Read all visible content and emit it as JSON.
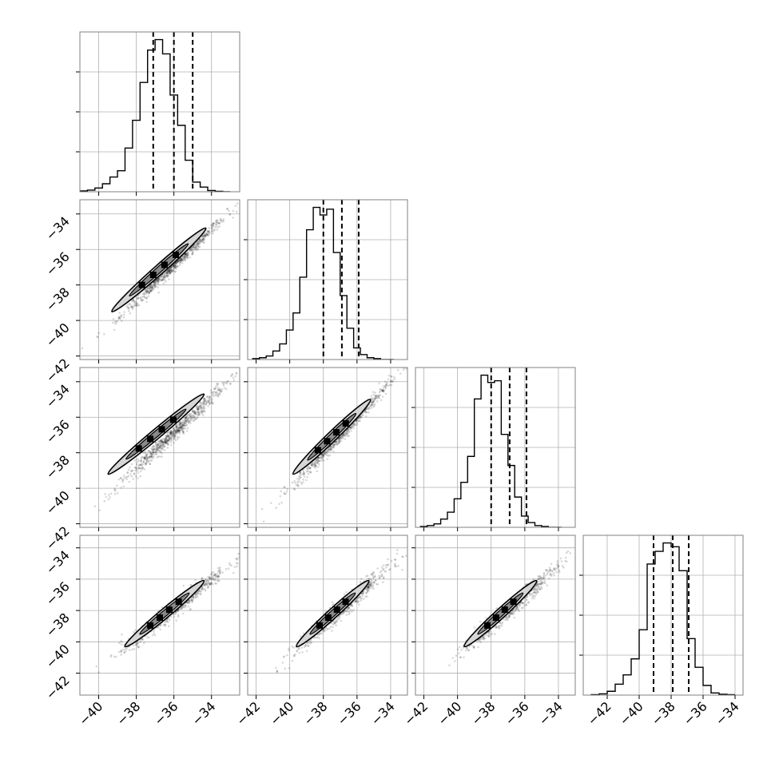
{
  "chart_data": {
    "type": "corner",
    "title": "",
    "grid": true,
    "quantile_lines": [
      0.16,
      0.5,
      0.84
    ],
    "panels": [
      {
        "kind": "hist",
        "row": 0,
        "col": 0,
        "xlim": [
          -41,
          -32.5
        ],
        "quantiles": [
          -37.1,
          -36.0,
          -35.0
        ],
        "bins": [
          -41.0,
          -40.6,
          -40.2,
          -39.8,
          -39.4,
          -39.0,
          -38.6,
          -38.2,
          -37.8,
          -37.4,
          -37.0,
          -36.6,
          -36.2,
          -35.8,
          -35.4,
          -35.0,
          -34.6,
          -34.2,
          -33.8,
          -33.4,
          -33.0
        ],
        "counts": [
          2,
          4,
          9,
          19,
          35,
          50,
          104,
          170,
          260,
          337,
          362,
          328,
          230,
          158,
          75,
          23,
          11,
          3,
          1,
          0
        ]
      },
      {
        "kind": "hist",
        "row": 1,
        "col": 1,
        "xlim": [
          -42.5,
          -33
        ],
        "quantiles": [
          -38.0,
          -36.9,
          -35.9
        ],
        "bins": [
          -42.2,
          -41.8,
          -41.4,
          -41.0,
          -40.6,
          -40.2,
          -39.8,
          -39.4,
          -39.0,
          -38.6,
          -38.2,
          -37.8,
          -37.4,
          -37.0,
          -36.6,
          -36.2,
          -35.8,
          -35.4,
          -35.0,
          -34.6,
          -34.2,
          -33.8
        ],
        "counts": [
          2,
          4,
          8,
          19,
          35,
          66,
          104,
          184,
          290,
          340,
          323,
          336,
          239,
          143,
          70,
          26,
          11,
          4,
          2,
          0,
          0
        ]
      },
      {
        "kind": "hist",
        "row": 2,
        "col": 2,
        "xlim": [
          -42.5,
          -33
        ],
        "quantiles": [
          -38.0,
          -36.9,
          -35.9
        ],
        "bins": [
          -42.2,
          -41.8,
          -41.4,
          -41.0,
          -40.6,
          -40.2,
          -39.8,
          -39.4,
          -39.0,
          -38.6,
          -38.2,
          -37.8,
          -37.4,
          -37.0,
          -36.6,
          -36.2,
          -35.8,
          -35.4,
          -35.0,
          -34.6,
          -34.2,
          -33.8
        ],
        "counts": [
          2,
          4,
          8,
          19,
          35,
          66,
          104,
          164,
          297,
          352,
          335,
          339,
          215,
          143,
          70,
          26,
          11,
          4,
          2,
          0,
          0
        ]
      },
      {
        "kind": "hist",
        "row": 3,
        "col": 3,
        "xlim": [
          -43.5,
          -33.5
        ],
        "quantiles": [
          -39.1,
          -37.9,
          -36.9
        ],
        "bins": [
          -43.0,
          -42.5,
          -42.0,
          -41.5,
          -41.0,
          -40.5,
          -40.0,
          -39.5,
          -39.0,
          -38.5,
          -38.0,
          -37.5,
          -37.0,
          -36.5,
          -36.0,
          -35.5,
          -35.0,
          -34.5,
          -34.0
        ],
        "counts": [
          1,
          3,
          9,
          26,
          48,
          86,
          155,
          311,
          341,
          361,
          352,
          295,
          134,
          66,
          23,
          5,
          2,
          1
        ]
      },
      {
        "kind": "scatter2d",
        "row": 1,
        "col": 0,
        "xlim": [
          -41,
          -32.5
        ],
        "ylim": [
          -42.2,
          -33.2
        ],
        "center": [
          -36.0,
          -36.9
        ],
        "slope": 1.0,
        "spread": [
          1.4,
          0.18
        ],
        "contour": [
          [
            -39.3,
            -39.5
          ],
          [
            -34.3,
            -34.8
          ]
        ]
      },
      {
        "kind": "scatter2d",
        "row": 2,
        "col": 0,
        "xlim": [
          -41,
          -32.5
        ],
        "ylim": [
          -42.2,
          -33.2
        ],
        "center": [
          -36.0,
          -36.9
        ],
        "slope": 1.0,
        "spread": [
          1.4,
          0.22
        ],
        "contour": [
          [
            -39.5,
            -39.2
          ],
          [
            -34.4,
            -34.7
          ]
        ]
      },
      {
        "kind": "scatter2d",
        "row": 2,
        "col": 1,
        "xlim": [
          -42.5,
          -33
        ],
        "ylim": [
          -42.2,
          -33.2
        ],
        "center": [
          -36.9,
          -36.9
        ],
        "slope": 1.0,
        "spread": [
          1.4,
          0.22
        ],
        "contour": [
          [
            -39.8,
            -39.2
          ],
          [
            -35.2,
            -35.0
          ]
        ]
      },
      {
        "kind": "scatter2d",
        "row": 3,
        "col": 0,
        "xlim": [
          -41,
          -32.5
        ],
        "ylim": [
          -43.4,
          -33.2
        ],
        "center": [
          -36.0,
          -37.9
        ],
        "slope": 0.95,
        "spread": [
          1.4,
          0.28
        ],
        "contour": [
          [
            -38.6,
            -40.3
          ],
          [
            -34.4,
            -36.1
          ]
        ]
      },
      {
        "kind": "scatter2d",
        "row": 3,
        "col": 1,
        "xlim": [
          -42.5,
          -33
        ],
        "ylim": [
          -43.4,
          -33.2
        ],
        "center": [
          -36.9,
          -37.9
        ],
        "slope": 0.95,
        "spread": [
          1.4,
          0.3
        ],
        "contour": [
          [
            -39.6,
            -40.3
          ],
          [
            -35.3,
            -36.1
          ]
        ]
      },
      {
        "kind": "scatter2d",
        "row": 3,
        "col": 2,
        "xlim": [
          -42.5,
          -33
        ],
        "ylim": [
          -43.4,
          -33.2
        ],
        "center": [
          -36.9,
          -37.9
        ],
        "slope": 0.95,
        "spread": [
          1.4,
          0.28
        ],
        "contour": [
          [
            -39.6,
            -40.3
          ],
          [
            -35.3,
            -36.1
          ]
        ]
      }
    ],
    "x_axes": [
      {
        "col": 0,
        "ticks": [
          -40,
          -38,
          -36,
          -34
        ],
        "labels": [
          "−40",
          "−38",
          "−36",
          "−34"
        ]
      },
      {
        "col": 1,
        "ticks": [
          -42,
          -40,
          -38,
          -36,
          -34
        ],
        "labels": [
          "−42",
          "−40",
          "−38",
          "−36",
          "−34"
        ]
      },
      {
        "col": 2,
        "ticks": [
          -42,
          -40,
          -38,
          -36,
          -34
        ],
        "labels": [
          "−42",
          "−40",
          "−38",
          "−36",
          "−34"
        ]
      },
      {
        "col": 3,
        "ticks": [
          -42,
          -40,
          -38,
          -36,
          -34
        ],
        "labels": [
          "−42",
          "−40",
          "−38",
          "−36",
          "−34"
        ]
      }
    ],
    "y_axes": [
      {
        "row": 1,
        "ticks": [
          -42,
          -40,
          -38,
          -36,
          -34
        ],
        "labels": [
          "−42",
          "−40",
          "−38",
          "−36",
          "−34"
        ]
      },
      {
        "row": 2,
        "ticks": [
          -42,
          -40,
          -38,
          -36,
          -34
        ],
        "labels": [
          "−42",
          "−40",
          "−38",
          "−36",
          "−34"
        ]
      },
      {
        "row": 3,
        "ticks": [
          -42,
          -40,
          -38,
          -36,
          -34
        ],
        "labels": [
          "−42",
          "−40",
          "−38",
          "−36",
          "−34"
        ]
      }
    ],
    "colors": {
      "line": "#000000",
      "grid": "#b0b0b0",
      "frame": "#808080",
      "points": "#000000"
    }
  }
}
